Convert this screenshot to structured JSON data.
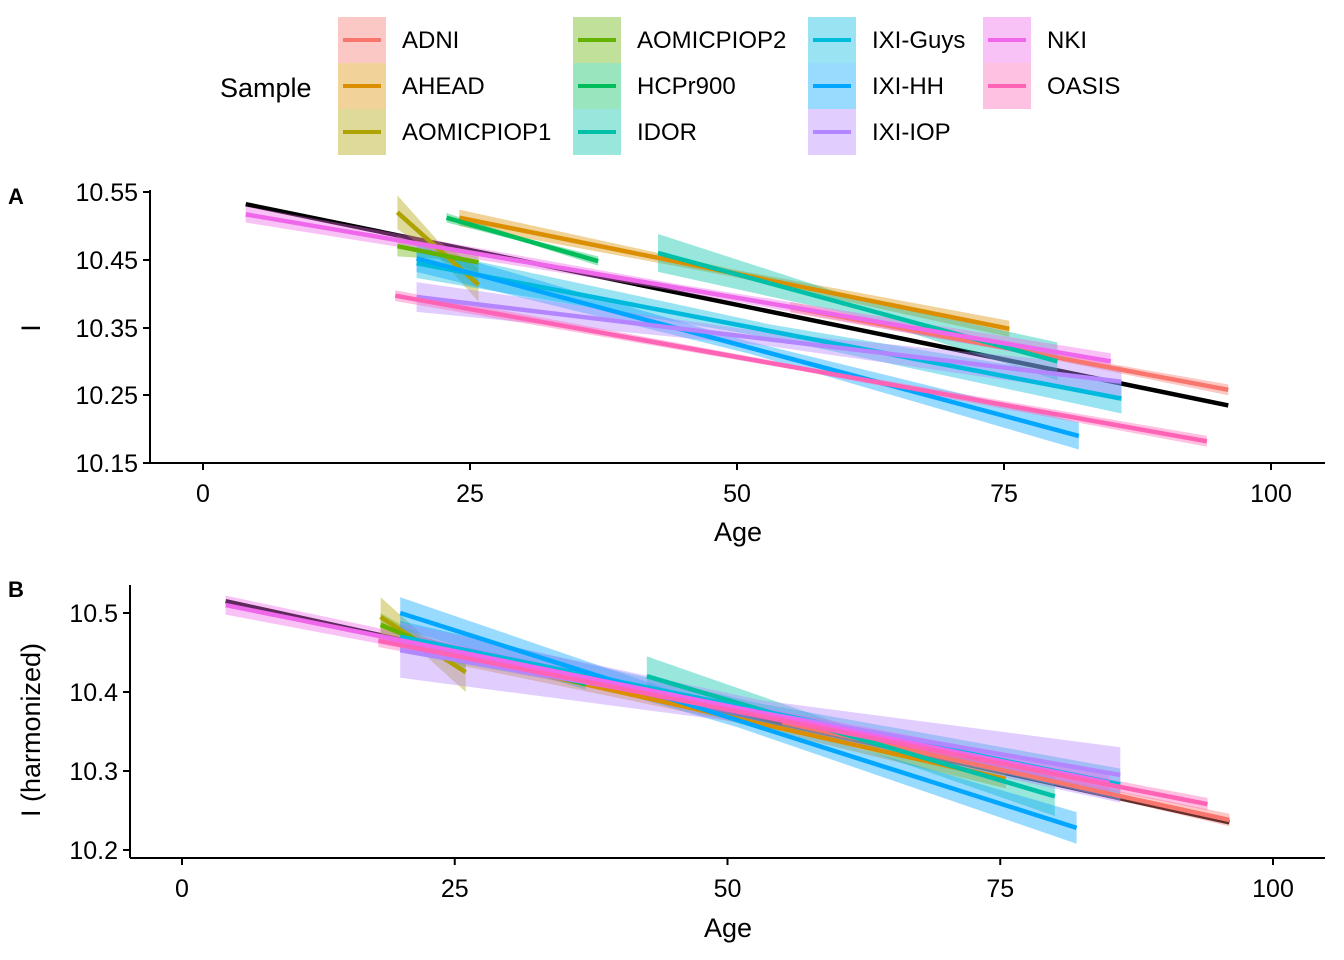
{
  "legend": {
    "title": "Sample",
    "position": "top",
    "items": [
      {
        "name": "ADNI",
        "color": "#F8766D"
      },
      {
        "name": "AHEAD",
        "color": "#DB8E00"
      },
      {
        "name": "AOMICPIOP1",
        "color": "#AEA200"
      },
      {
        "name": "AOMICPIOP2",
        "color": "#64B200"
      },
      {
        "name": "HCPr900",
        "color": "#00BD5C"
      },
      {
        "name": "IDOR",
        "color": "#00C1A7"
      },
      {
        "name": "IXI-Guys",
        "color": "#00BADE"
      },
      {
        "name": "IXI-HH",
        "color": "#00A6FF"
      },
      {
        "name": "IXI-IOP",
        "color": "#B385FF"
      },
      {
        "name": "NKI",
        "color": "#EF67EB"
      },
      {
        "name": "OASIS",
        "color": "#FF63B6"
      }
    ]
  },
  "chart_data": [
    {
      "type": "line",
      "panel_label": "A",
      "xlabel": "Age",
      "ylabel": "I",
      "xlim": [
        -5,
        105
      ],
      "ylim": [
        10.15,
        10.56
      ],
      "xticks": [
        "0",
        "25",
        "50",
        "75",
        "100"
      ],
      "yticks": [
        "10.15",
        "10.25",
        "10.35",
        "10.45",
        "10.55"
      ],
      "grid": false,
      "overall_fit": {
        "color": "#000000",
        "x": [
          4,
          96
        ],
        "y": [
          10.532,
          10.235
        ]
      },
      "series": [
        {
          "name": "ADNI",
          "x": [
            55,
            96
          ],
          "y": [
            10.38,
            10.258
          ],
          "band": 0.008
        },
        {
          "name": "AHEAD",
          "x": [
            24,
            75.5
          ],
          "y": [
            10.512,
            10.348
          ],
          "band": 0.012
        },
        {
          "name": "AOMICPIOP1",
          "x": [
            18.2,
            25.8
          ],
          "y": [
            10.52,
            10.413
          ],
          "band": 0.025
        },
        {
          "name": "AOMICPIOP2",
          "x": [
            18.2,
            25.8
          ],
          "y": [
            10.47,
            10.446
          ],
          "band": 0.015
        },
        {
          "name": "HCPr900",
          "x": [
            22.8,
            37
          ],
          "y": [
            10.512,
            10.448
          ],
          "band": 0.007
        },
        {
          "name": "IDOR",
          "x": [
            42.6,
            80
          ],
          "y": [
            10.46,
            10.3
          ],
          "band": 0.028
        },
        {
          "name": "IXI-Guys",
          "x": [
            20,
            86
          ],
          "y": [
            10.445,
            10.245
          ],
          "band": 0.022
        },
        {
          "name": "IXI-HH",
          "x": [
            20,
            82
          ],
          "y": [
            10.452,
            10.19
          ],
          "band": 0.02
        },
        {
          "name": "IXI-IOP",
          "x": [
            20,
            86
          ],
          "y": [
            10.395,
            10.27
          ],
          "band": 0.022
        },
        {
          "name": "NKI",
          "x": [
            4,
            85
          ],
          "y": [
            10.517,
            10.3
          ],
          "band": 0.012
        },
        {
          "name": "OASIS",
          "x": [
            18,
            94
          ],
          "y": [
            10.397,
            10.182
          ],
          "band": 0.008
        }
      ]
    },
    {
      "type": "line",
      "panel_label": "B",
      "xlabel": "Age",
      "ylabel": "I (harmonized)",
      "xlim": [
        -5,
        105
      ],
      "ylim": [
        10.195,
        10.53
      ],
      "xticks": [
        "0",
        "25",
        "50",
        "75",
        "100"
      ],
      "yticks": [
        "10.2",
        "10.3",
        "10.4",
        "10.5"
      ],
      "grid": false,
      "overall_fit": {
        "color": "#000000",
        "x": [
          4,
          96
        ],
        "y": [
          10.515,
          10.235
        ]
      },
      "series": [
        {
          "name": "ADNI",
          "x": [
            55,
            96
          ],
          "y": [
            10.362,
            10.238
          ],
          "band": 0.008
        },
        {
          "name": "AHEAD",
          "x": [
            24,
            75.5
          ],
          "y": [
            10.45,
            10.29
          ],
          "band": 0.012
        },
        {
          "name": "AOMICPIOP1",
          "x": [
            18.2,
            26
          ],
          "y": [
            10.495,
            10.425
          ],
          "band": 0.025
        },
        {
          "name": "AOMICPIOP2",
          "x": [
            18.2,
            26
          ],
          "y": [
            10.485,
            10.44
          ],
          "band": 0.015
        },
        {
          "name": "HCPr900",
          "x": [
            22.8,
            37
          ],
          "y": [
            10.46,
            10.41
          ],
          "band": 0.007
        },
        {
          "name": "IDOR",
          "x": [
            42.6,
            80
          ],
          "y": [
            10.42,
            10.268
          ],
          "band": 0.025
        },
        {
          "name": "IXI-Guys",
          "x": [
            20,
            86
          ],
          "y": [
            10.47,
            10.283
          ],
          "band": 0.02
        },
        {
          "name": "IXI-HH",
          "x": [
            20,
            82
          ],
          "y": [
            10.5,
            10.228
          ],
          "band": 0.02
        },
        {
          "name": "IXI-IOP",
          "x": [
            20,
            86
          ],
          "y": [
            10.453,
            10.295
          ],
          "band": 0.035
        },
        {
          "name": "NKI",
          "x": [
            4,
            85
          ],
          "y": [
            10.51,
            10.285
          ],
          "band": 0.012
        },
        {
          "name": "OASIS",
          "x": [
            18,
            94
          ],
          "y": [
            10.465,
            10.258
          ],
          "band": 0.008
        }
      ]
    }
  ]
}
